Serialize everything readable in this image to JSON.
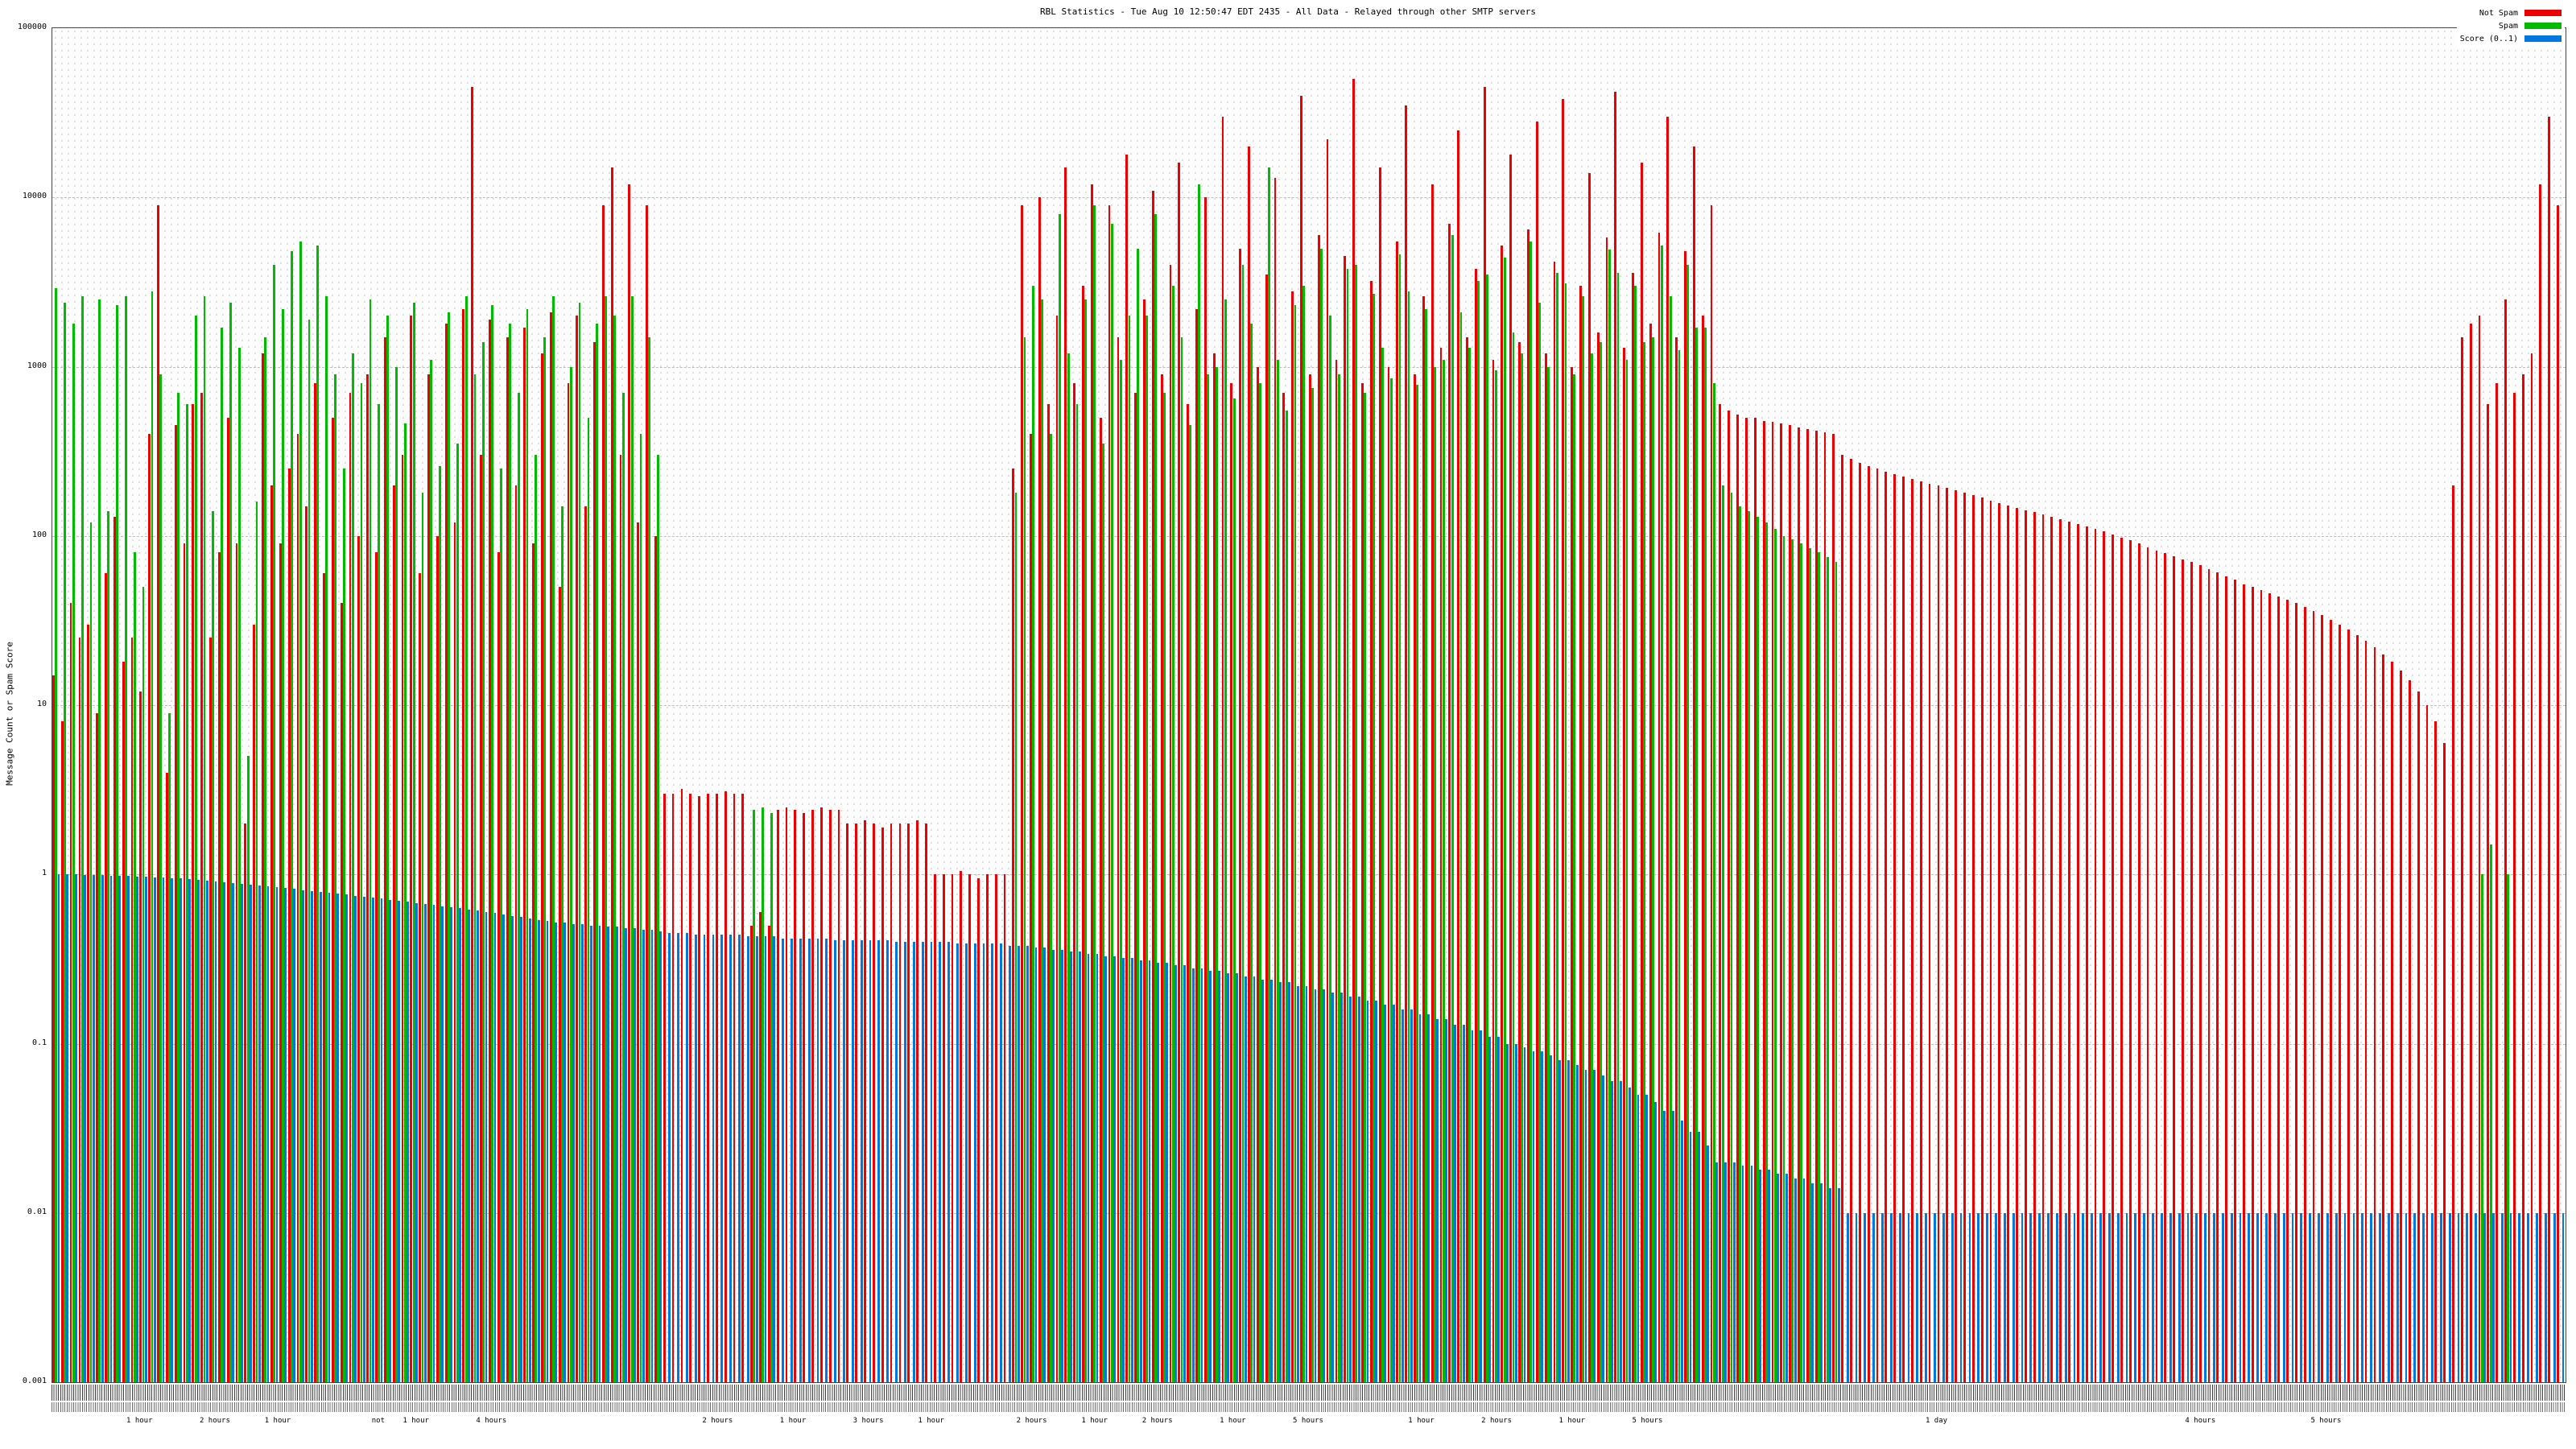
{
  "title": "RBL Statistics - Tue Aug 10 12:50:47 EDT 2435 - All Data - Relayed through other SMTP servers",
  "chart_data": {
    "type": "bar",
    "scale": "log",
    "title": "RBL Statistics - Tue Aug 10 12:50:47 EDT 2435 - All Data - Relayed through other SMTP servers",
    "ylabel": "Message Count or Spam Score",
    "ylim": [
      0.001,
      100000
    ],
    "yticks": [
      "100000",
      "10000",
      "1000",
      "100",
      "10",
      "1",
      "0.1",
      "0.01",
      "0.001"
    ],
    "legend": {
      "position": "top-right",
      "items": [
        {
          "label": "Not Spam",
          "color": "#ee0000"
        },
        {
          "label": "Spam",
          "color": "#00bb00"
        },
        {
          "label": "Score (0..1)",
          "color": "#0078e0"
        }
      ]
    },
    "bars_format": "[not_spam_count, spam_count, score]",
    "bars": [
      [
        15,
        2900,
        1
      ],
      [
        8,
        2400,
        1
      ],
      [
        40,
        1800,
        1
      ],
      [
        25,
        2600,
        0.99
      ],
      [
        30,
        120,
        0.99
      ],
      [
        9,
        2500,
        0.99
      ],
      [
        60,
        140,
        0.98
      ],
      [
        130,
        2300,
        0.98
      ],
      [
        18,
        2600,
        0.98
      ],
      [
        25,
        80,
        0.97
      ],
      [
        12,
        50,
        0.97
      ],
      [
        400,
        2800,
        0.96
      ],
      [
        9000,
        900,
        0.96
      ],
      [
        4,
        9,
        0.95
      ],
      [
        450,
        700,
        0.95
      ],
      [
        90,
        600,
        0.94
      ],
      [
        600,
        2000,
        0.93
      ],
      [
        700,
        2600,
        0.92
      ],
      [
        25,
        140,
        0.91
      ],
      [
        80,
        1700,
        0.9
      ],
      [
        500,
        2400,
        0.89
      ],
      [
        90,
        1300,
        0.88
      ],
      [
        2,
        5,
        0.87
      ],
      [
        30,
        160,
        0.86
      ],
      [
        1200,
        1500,
        0.85
      ],
      [
        200,
        4000,
        0.84
      ],
      [
        90,
        2200,
        0.83
      ],
      [
        250,
        4800,
        0.82
      ],
      [
        400,
        5500,
        0.81
      ],
      [
        150,
        1900,
        0.8
      ],
      [
        800,
        5200,
        0.79
      ],
      [
        60,
        2600,
        0.78
      ],
      [
        500,
        900,
        0.77
      ],
      [
        40,
        250,
        0.76
      ],
      [
        700,
        1200,
        0.75
      ],
      [
        100,
        800,
        0.74
      ],
      [
        900,
        2500,
        0.73
      ],
      [
        80,
        600,
        0.72
      ],
      [
        1500,
        2000,
        0.71
      ],
      [
        200,
        1000,
        0.7
      ],
      [
        300,
        460,
        0.69
      ],
      [
        2000,
        2400,
        0.68
      ],
      [
        60,
        180,
        0.67
      ],
      [
        900,
        1100,
        0.66
      ],
      [
        100,
        260,
        0.65
      ],
      [
        1800,
        2100,
        0.64
      ],
      [
        120,
        350,
        0.63
      ],
      [
        2200,
        2600,
        0.62
      ],
      [
        45000,
        900,
        0.61
      ],
      [
        300,
        1400,
        0.6
      ],
      [
        1900,
        2300,
        0.59
      ],
      [
        80,
        250,
        0.58
      ],
      [
        1500,
        1800,
        0.57
      ],
      [
        200,
        700,
        0.56
      ],
      [
        1700,
        2200,
        0.55
      ],
      [
        90,
        300,
        0.54
      ],
      [
        1200,
        1500,
        0.53
      ],
      [
        2100,
        2600,
        0.52
      ],
      [
        50,
        150,
        0.52
      ],
      [
        800,
        1000,
        0.51
      ],
      [
        2000,
        2400,
        0.51
      ],
      [
        150,
        500,
        0.5
      ],
      [
        1400,
        1800,
        0.5
      ],
      [
        9000,
        2600,
        0.49
      ],
      [
        15000,
        2000,
        0.49
      ],
      [
        300,
        700,
        0.48
      ],
      [
        12000,
        2600,
        0.48
      ],
      [
        120,
        400,
        0.47
      ],
      [
        9000,
        1500,
        0.47
      ],
      [
        100,
        300,
        0.46
      ],
      [
        3,
        0,
        0.45
      ],
      [
        3,
        0,
        0.45
      ],
      [
        3.2,
        0,
        0.45
      ],
      [
        3,
        0,
        0.44
      ],
      [
        2.9,
        0,
        0.44
      ],
      [
        3,
        0,
        0.44
      ],
      [
        3,
        0,
        0.44
      ],
      [
        3.1,
        0,
        0.44
      ],
      [
        3,
        0,
        0.44
      ],
      [
        3,
        0,
        0.43
      ],
      [
        0.5,
        2.4,
        0.43
      ],
      [
        0.6,
        2.5,
        0.43
      ],
      [
        0.5,
        2.3,
        0.43
      ],
      [
        2.4,
        0,
        0.42
      ],
      [
        2.5,
        0,
        0.42
      ],
      [
        2.4,
        0,
        0.42
      ],
      [
        2.3,
        0,
        0.42
      ],
      [
        2.4,
        0,
        0.42
      ],
      [
        2.5,
        0,
        0.42
      ],
      [
        2.4,
        0,
        0.41
      ],
      [
        2.4,
        0,
        0.41
      ],
      [
        2,
        0,
        0.41
      ],
      [
        2,
        0,
        0.41
      ],
      [
        2.1,
        0,
        0.41
      ],
      [
        2,
        0,
        0.41
      ],
      [
        1.9,
        0,
        0.41
      ],
      [
        2,
        0,
        0.4
      ],
      [
        2,
        0,
        0.4
      ],
      [
        2,
        0,
        0.4
      ],
      [
        2.1,
        0,
        0.4
      ],
      [
        2,
        0,
        0.4
      ],
      [
        1,
        0,
        0.4
      ],
      [
        1,
        0,
        0.4
      ],
      [
        1,
        0,
        0.39
      ],
      [
        1.05,
        0,
        0.39
      ],
      [
        1,
        0,
        0.39
      ],
      [
        0.95,
        0,
        0.39
      ],
      [
        1,
        0,
        0.39
      ],
      [
        1,
        0,
        0.39
      ],
      [
        1,
        0,
        0.38
      ],
      [
        250,
        180,
        0.38
      ],
      [
        9000,
        1500,
        0.38
      ],
      [
        400,
        3000,
        0.37
      ],
      [
        10000,
        2500,
        0.37
      ],
      [
        600,
        400,
        0.36
      ],
      [
        2000,
        8000,
        0.36
      ],
      [
        15000,
        1200,
        0.35
      ],
      [
        800,
        600,
        0.35
      ],
      [
        3000,
        2500,
        0.34
      ],
      [
        12000,
        9000,
        0.34
      ],
      [
        500,
        350,
        0.33
      ],
      [
        9000,
        7000,
        0.33
      ],
      [
        1500,
        1100,
        0.32
      ],
      [
        18000,
        2000,
        0.32
      ],
      [
        700,
        5000,
        0.31
      ],
      [
        2500,
        2000,
        0.31
      ],
      [
        11000,
        8000,
        0.3
      ],
      [
        900,
        700,
        0.3
      ],
      [
        4000,
        3000,
        0.29
      ],
      [
        16000,
        1500,
        0.29
      ],
      [
        600,
        450,
        0.28
      ],
      [
        2200,
        12000,
        0.28
      ],
      [
        10000,
        900,
        0.27
      ],
      [
        1200,
        1000,
        0.27
      ],
      [
        30000,
        2500,
        0.26
      ],
      [
        800,
        650,
        0.26
      ],
      [
        5000,
        4000,
        0.25
      ],
      [
        20000,
        1800,
        0.25
      ],
      [
        1000,
        800,
        0.24
      ],
      [
        3500,
        15000,
        0.24
      ],
      [
        13000,
        1100,
        0.23
      ],
      [
        700,
        550,
        0.23
      ],
      [
        2800,
        2300,
        0.22
      ],
      [
        40000,
        3000,
        0.22
      ],
      [
        900,
        750,
        0.21
      ],
      [
        6000,
        5000,
        0.21
      ],
      [
        22000,
        2000,
        0.2
      ],
      [
        1100,
        900,
        0.2
      ],
      [
        4500,
        3800,
        0.19
      ],
      [
        50000,
        4000,
        0.19
      ],
      [
        800,
        700,
        0.18
      ],
      [
        3200,
        2700,
        0.18
      ],
      [
        15000,
        1300,
        0.17
      ],
      [
        1000,
        850,
        0.17
      ],
      [
        5500,
        4600,
        0.16
      ],
      [
        35000,
        2800,
        0.16
      ],
      [
        900,
        780,
        0.15
      ],
      [
        2600,
        2200,
        0.15
      ],
      [
        12000,
        1000,
        0.14
      ],
      [
        1300,
        1100,
        0.14
      ],
      [
        7000,
        6000,
        0.13
      ],
      [
        25000,
        2100,
        0.13
      ],
      [
        1500,
        1300,
        0.12
      ],
      [
        3800,
        3200,
        0.12
      ],
      [
        45000,
        3500,
        0.11
      ],
      [
        1100,
        950,
        0.11
      ],
      [
        5200,
        4400,
        0.1
      ],
      [
        18000,
        1600,
        0.1
      ],
      [
        1400,
        1200,
        0.095
      ],
      [
        6500,
        5500,
        0.09
      ],
      [
        28000,
        2400,
        0.09
      ],
      [
        1200,
        1000,
        0.085
      ],
      [
        4200,
        3600,
        0.08
      ],
      [
        38000,
        3100,
        0.08
      ],
      [
        1000,
        900,
        0.075
      ],
      [
        3000,
        2600,
        0.07
      ],
      [
        14000,
        1200,
        0.07
      ],
      [
        1600,
        1400,
        0.065
      ],
      [
        5800,
        4900,
        0.06
      ],
      [
        42000,
        3600,
        0.06
      ],
      [
        1300,
        1100,
        0.055
      ],
      [
        3600,
        3000,
        0.05
      ],
      [
        16000,
        1400,
        0.05
      ],
      [
        1800,
        1500,
        0.045
      ],
      [
        6200,
        5200,
        0.04
      ],
      [
        30000,
        2600,
        0.04
      ],
      [
        1500,
        1250,
        0.035
      ],
      [
        4800,
        4000,
        0.03
      ],
      [
        20000,
        1700,
        0.03
      ],
      [
        2000,
        1700,
        0.025
      ],
      [
        9000,
        800,
        0.02
      ],
      [
        600,
        200,
        0.02
      ],
      [
        550,
        180,
        0.02
      ],
      [
        520,
        150,
        0.019
      ],
      [
        500,
        140,
        0.019
      ],
      [
        500,
        130,
        0.018
      ],
      [
        480,
        120,
        0.018
      ],
      [
        470,
        110,
        0.017
      ],
      [
        460,
        100,
        0.017
      ],
      [
        450,
        95,
        0.016
      ],
      [
        440,
        90,
        0.016
      ],
      [
        430,
        85,
        0.015
      ],
      [
        420,
        80,
        0.015
      ],
      [
        410,
        75,
        0.014
      ],
      [
        400,
        70,
        0.014
      ],
      [
        300,
        0,
        0.01
      ],
      [
        285,
        0,
        0.01
      ],
      [
        270,
        0,
        0.01
      ],
      [
        260,
        0,
        0.01
      ],
      [
        250,
        0,
        0.01
      ],
      [
        240,
        0,
        0.01
      ],
      [
        232,
        0,
        0.01
      ],
      [
        225,
        0,
        0.01
      ],
      [
        218,
        0,
        0.01
      ],
      [
        210,
        0,
        0.01
      ],
      [
        204,
        0,
        0.01
      ],
      [
        198,
        0,
        0.01
      ],
      [
        192,
        0,
        0.01
      ],
      [
        186,
        0,
        0.01
      ],
      [
        180,
        0,
        0.01
      ],
      [
        174,
        0,
        0.01
      ],
      [
        168,
        0,
        0.01
      ],
      [
        162,
        0,
        0.01
      ],
      [
        157,
        0,
        0.01
      ],
      [
        152,
        0,
        0.01
      ],
      [
        147,
        0,
        0.01
      ],
      [
        142,
        0,
        0.01
      ],
      [
        138,
        0,
        0.01
      ],
      [
        134,
        0,
        0.01
      ],
      [
        130,
        0,
        0.01
      ],
      [
        126,
        0,
        0.01
      ],
      [
        122,
        0,
        0.01
      ],
      [
        118,
        0,
        0.01
      ],
      [
        114,
        0,
        0.01
      ],
      [
        110,
        0,
        0.01
      ],
      [
        106,
        0,
        0.01
      ],
      [
        102,
        0,
        0.01
      ],
      [
        98,
        0,
        0.01
      ],
      [
        94,
        0,
        0.01
      ],
      [
        90,
        0,
        0.01
      ],
      [
        86,
        0,
        0.01
      ],
      [
        82,
        0,
        0.01
      ],
      [
        79,
        0,
        0.01
      ],
      [
        76,
        0,
        0.01
      ],
      [
        73,
        0,
        0.01
      ],
      [
        70,
        0,
        0.01
      ],
      [
        67,
        0,
        0.01
      ],
      [
        64,
        0,
        0.01
      ],
      [
        61,
        0,
        0.01
      ],
      [
        58,
        0,
        0.01
      ],
      [
        55,
        0,
        0.01
      ],
      [
        52,
        0,
        0.01
      ],
      [
        50,
        0,
        0.01
      ],
      [
        48,
        0,
        0.01
      ],
      [
        46,
        0,
        0.01
      ],
      [
        44,
        0,
        0.01
      ],
      [
        42,
        0,
        0.01
      ],
      [
        40,
        0,
        0.01
      ],
      [
        38,
        0,
        0.01
      ],
      [
        36,
        0,
        0.01
      ],
      [
        34,
        0,
        0.01
      ],
      [
        32,
        0,
        0.01
      ],
      [
        30,
        0,
        0.01
      ],
      [
        28,
        0,
        0.01
      ],
      [
        26,
        0,
        0.01
      ],
      [
        24,
        0,
        0.01
      ],
      [
        22,
        0,
        0.01
      ],
      [
        20,
        0,
        0.01
      ],
      [
        18,
        0,
        0.01
      ],
      [
        16,
        0,
        0.01
      ],
      [
        14,
        0,
        0.01
      ],
      [
        12,
        0,
        0.01
      ],
      [
        10,
        0,
        0.01
      ],
      [
        8,
        0,
        0.01
      ],
      [
        6,
        0,
        0.01
      ],
      [
        200,
        0,
        0.01
      ],
      [
        1500,
        0,
        0.01
      ],
      [
        1800,
        0,
        0.01
      ],
      [
        2000,
        1,
        0.01
      ],
      [
        600,
        1.5,
        0.01
      ],
      [
        800,
        0,
        0.01
      ],
      [
        2500,
        1,
        0.01
      ],
      [
        700,
        0,
        0.01
      ],
      [
        900,
        0,
        0.01
      ],
      [
        1200,
        0,
        0.01
      ],
      [
        12000,
        0,
        0.01
      ],
      [
        30000,
        0,
        0.01
      ],
      [
        9000,
        0,
        0.01
      ]
    ],
    "xaxis": {
      "dense_labels_illegible": true,
      "time_labels": [
        {
          "text": "1 hour",
          "x": 0.035
        },
        {
          "text": "2 hours",
          "x": 0.065
        },
        {
          "text": "1 hour",
          "x": 0.09
        },
        {
          "text": "not",
          "x": 0.13
        },
        {
          "text": "1 hour",
          "x": 0.145
        },
        {
          "text": "4 hours",
          "x": 0.175
        },
        {
          "text": "2 hours",
          "x": 0.265
        },
        {
          "text": "1 hour",
          "x": 0.295
        },
        {
          "text": "3 hours",
          "x": 0.325
        },
        {
          "text": "1 hour",
          "x": 0.35
        },
        {
          "text": "2 hours",
          "x": 0.39
        },
        {
          "text": "1 hour",
          "x": 0.415
        },
        {
          "text": "2 hours",
          "x": 0.44
        },
        {
          "text": "1 hour",
          "x": 0.47
        },
        {
          "text": "5 hours",
          "x": 0.5
        },
        {
          "text": "1 hour",
          "x": 0.545
        },
        {
          "text": "2 hours",
          "x": 0.575
        },
        {
          "text": "1 hour",
          "x": 0.605
        },
        {
          "text": "5 hours",
          "x": 0.635
        },
        {
          "text": "1 day",
          "x": 0.75
        },
        {
          "text": "4 hours",
          "x": 0.855
        },
        {
          "text": "5 hours",
          "x": 0.905
        }
      ]
    }
  }
}
